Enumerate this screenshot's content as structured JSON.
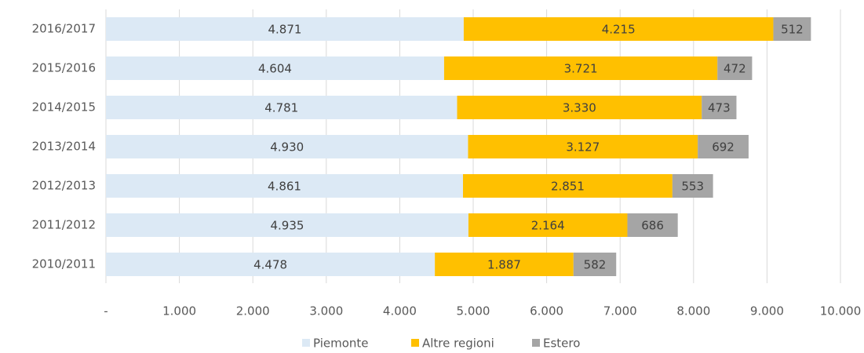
{
  "chart_data": {
    "type": "stacked-barh",
    "categories": [
      "2016/2017",
      "2015/2016",
      "2014/2015",
      "2013/2014",
      "2012/2013",
      "2011/2012",
      "2010/2011"
    ],
    "series": [
      {
        "name": "Piemonte",
        "color": "#dce9f5",
        "values": [
          4871,
          4604,
          4781,
          4930,
          4861,
          4935,
          4478
        ],
        "value_labels": [
          "4.871",
          "4.604",
          "4.781",
          "4.930",
          "4.861",
          "4.935",
          "4.478"
        ]
      },
      {
        "name": "Altre regioni",
        "color": "#ffc000",
        "values": [
          4215,
          3721,
          3330,
          3127,
          2851,
          2164,
          1887
        ],
        "value_labels": [
          "4.215",
          "3.721",
          "3.330",
          "3.127",
          "2.851",
          "2.164",
          "1.887"
        ]
      },
      {
        "name": "Estero",
        "color": "#a5a5a5",
        "values": [
          512,
          472,
          473,
          692,
          553,
          686,
          582
        ]
      }
    ],
    "xlim": [
      0,
      10000
    ],
    "xticks": [
      {
        "value": 0,
        "label": "-"
      },
      {
        "value": 1000,
        "label": "1.000"
      },
      {
        "value": 2000,
        "label": "2.000"
      },
      {
        "value": 3000,
        "label": "3.000"
      },
      {
        "value": 4000,
        "label": "4.000"
      },
      {
        "value": 5000,
        "label": "5.000"
      },
      {
        "value": 6000,
        "label": "6.000"
      },
      {
        "value": 7000,
        "label": "7.000"
      },
      {
        "value": 8000,
        "label": "8.000"
      },
      {
        "value": 9000,
        "label": "9.000"
      },
      {
        "value": 10000,
        "label": "10.000"
      }
    ],
    "grid": true,
    "legend": "bottom"
  }
}
